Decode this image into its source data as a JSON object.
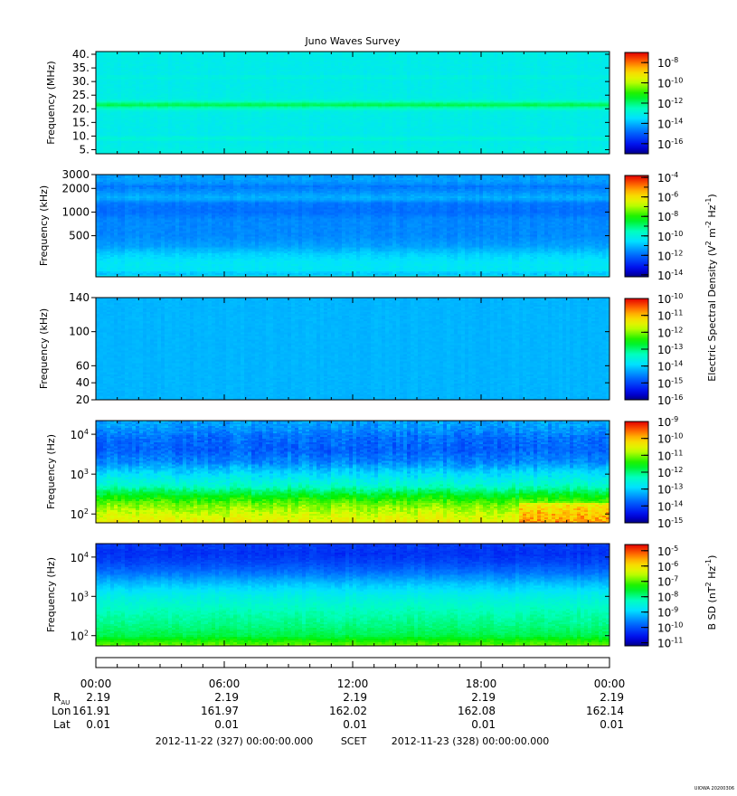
{
  "title": "Juno Waves Survey",
  "chart_data": [
    {
      "type": "heatmap",
      "ylabel": "Frequency (MHz)",
      "yticks": [
        "5.",
        "10.",
        "15.",
        "20.",
        "25.",
        "30.",
        "35.",
        "40."
      ],
      "yvals": [
        5,
        10,
        15,
        20,
        25,
        30,
        35,
        40
      ],
      "ylim": [
        3.5,
        41
      ],
      "yscale": "linear",
      "colorbar": {
        "ticks": [
          [
            "10",
            "-8"
          ],
          [
            "10",
            "-10"
          ],
          [
            "10",
            "-12"
          ],
          [
            "10",
            "-14"
          ],
          [
            "10",
            "-16"
          ]
        ],
        "range": [
          -17,
          -7
        ]
      },
      "bands": [
        [
          3.5,
          -13.0
        ],
        [
          8.0,
          -13.2
        ],
        [
          9.0,
          -12.8
        ],
        [
          10.5,
          -13.2
        ],
        [
          19.0,
          -13.1
        ],
        [
          20.6,
          -12.3
        ],
        [
          21.4,
          -11.6
        ],
        [
          22.3,
          -12.3
        ],
        [
          23.5,
          -13.1
        ],
        [
          30.5,
          -13.2
        ],
        [
          31.5,
          -12.9
        ],
        [
          32.5,
          -13.2
        ],
        [
          41,
          -13.1
        ]
      ],
      "noise": 0.18,
      "features": []
    },
    {
      "type": "heatmap",
      "ylabel": "Frequency (kHz)",
      "yticks": [
        "500",
        "1000",
        "2000",
        "3000"
      ],
      "yvals": [
        500,
        1000,
        2000,
        3000
      ],
      "ylim": [
        150,
        3000
      ],
      "yscale": "log",
      "colorbar": {
        "ticks": [
          [
            "10",
            "-4"
          ],
          [
            "10",
            "-6"
          ],
          [
            "10",
            "-8"
          ],
          [
            "10",
            "-10"
          ],
          [
            "10",
            "-12"
          ],
          [
            "10",
            "-14"
          ]
        ],
        "range": [
          -14.2,
          -3.8
        ]
      },
      "bands": [
        [
          150,
          -10.2
        ],
        [
          165,
          -11.0
        ],
        [
          180,
          -10.4
        ],
        [
          230,
          -10.4
        ],
        [
          300,
          -10.8
        ],
        [
          360,
          -11.3
        ],
        [
          500,
          -11.6
        ],
        [
          800,
          -11.6
        ],
        [
          1000,
          -11.9
        ],
        [
          1300,
          -11.8
        ],
        [
          1500,
          -11.1
        ],
        [
          1700,
          -11.4
        ],
        [
          2100,
          -11.8
        ],
        [
          2300,
          -11.5
        ],
        [
          2600,
          -11.3
        ],
        [
          3000,
          -11.4
        ]
      ],
      "noise": 0.25,
      "features": []
    },
    {
      "type": "heatmap",
      "ylabel": "Frequency (kHz)",
      "yticks": [
        "20",
        "40",
        "60",
        "100",
        "140"
      ],
      "yvals": [
        20,
        40,
        60,
        100,
        140
      ],
      "ylim": [
        20,
        140
      ],
      "yscale": "linear",
      "colorbar": {
        "ticks": [
          [
            "10",
            "-10"
          ],
          [
            "10",
            "-11"
          ],
          [
            "10",
            "-12"
          ],
          [
            "10",
            "-13"
          ],
          [
            "10",
            "-14"
          ],
          [
            "10",
            "-15"
          ],
          [
            "10",
            "-16"
          ]
        ],
        "range": [
          -16,
          -10
        ]
      },
      "bands": [
        [
          20,
          -14.2
        ],
        [
          140,
          -14.2
        ]
      ],
      "noise": 0.08,
      "features": []
    },
    {
      "type": "heatmap",
      "ylabel": "Frequency (Hz)",
      "yticks": [
        [
          "10",
          "2"
        ],
        [
          "10",
          "3"
        ],
        [
          "10",
          "4"
        ]
      ],
      "yvals": [
        100,
        1000,
        10000
      ],
      "ylim": [
        60,
        22000
      ],
      "yscale": "log",
      "colorbar": {
        "ticks": [
          [
            "10",
            "-9"
          ],
          [
            "10",
            "-10"
          ],
          [
            "10",
            "-11"
          ],
          [
            "10",
            "-12"
          ],
          [
            "10",
            "-13"
          ],
          [
            "10",
            "-14"
          ],
          [
            "10",
            "-15"
          ]
        ],
        "range": [
          -15,
          -9
        ]
      },
      "bands": [
        [
          60,
          -10.4
        ],
        [
          100,
          -10.7
        ],
        [
          180,
          -11.1
        ],
        [
          280,
          -11.6
        ],
        [
          500,
          -12.4
        ],
        [
          1000,
          -12.9
        ],
        [
          2000,
          -13.5
        ],
        [
          4000,
          -13.8
        ],
        [
          8000,
          -13.7
        ],
        [
          15000,
          -13.4
        ],
        [
          22000,
          -13.3
        ]
      ],
      "noise": 0.35,
      "features": [
        {
          "t0": 19.7,
          "t1": 24,
          "f0": 60,
          "f1": 190,
          "delta": 0.6
        }
      ]
    },
    {
      "type": "heatmap",
      "ylabel": "Frequency (Hz)",
      "yticks": [
        [
          "10",
          "2"
        ],
        [
          "10",
          "3"
        ],
        [
          "10",
          "4"
        ]
      ],
      "yvals": [
        100,
        1000,
        10000
      ],
      "ylim": [
        55,
        22000
      ],
      "yscale": "log",
      "colorbar": {
        "ticks": [
          [
            "10",
            "-5"
          ],
          [
            "10",
            "-6"
          ],
          [
            "10",
            "-7"
          ],
          [
            "10",
            "-8"
          ],
          [
            "10",
            "-9"
          ],
          [
            "10",
            "-10"
          ],
          [
            "10",
            "-11"
          ]
        ],
        "range": [
          -11.2,
          -4.6
        ]
      },
      "bands": [
        [
          55,
          -6.9
        ],
        [
          70,
          -7.2
        ],
        [
          100,
          -7.7
        ],
        [
          200,
          -8.0
        ],
        [
          400,
          -8.2
        ],
        [
          1000,
          -8.6
        ],
        [
          2000,
          -9.1
        ],
        [
          4000,
          -9.7
        ],
        [
          7000,
          -10.1
        ],
        [
          12000,
          -10.3
        ],
        [
          22000,
          -10.2
        ]
      ],
      "noise": 0.2,
      "features": []
    }
  ],
  "colorbar_labels": {
    "electric": [
      "Electric Spectral Density (V",
      "2",
      " m",
      "-2",
      " Hz",
      "-1",
      ")"
    ],
    "magnetic": [
      "B SD (nT",
      "2",
      " Hz",
      "-1",
      ")"
    ]
  },
  "time_axis": {
    "range": [
      0,
      24
    ],
    "ticks": [
      "00:00",
      "06:00",
      "12:00",
      "18:00",
      "00:00"
    ],
    "tick_hours": [
      0,
      6,
      12,
      18,
      24
    ]
  },
  "ephemeris": {
    "labels": {
      "rau": "R",
      "rau_sub": "AU",
      "lon": "Lon",
      "lat": "Lat"
    },
    "rau": [
      "2.19",
      "2.19",
      "2.19",
      "2.19",
      "2.19"
    ],
    "lon": [
      "161.91",
      "161.97",
      "162.02",
      "162.08",
      "162.14"
    ],
    "lat": [
      "0.01",
      "0.01",
      "0.01",
      "0.01",
      "0.01"
    ]
  },
  "footer": {
    "start": "2012-11-22 (327) 00:00:00.000",
    "scet": "SCET",
    "end": "2012-11-23 (328) 00:00:00.000"
  },
  "credit": "UIOWA 20200306"
}
